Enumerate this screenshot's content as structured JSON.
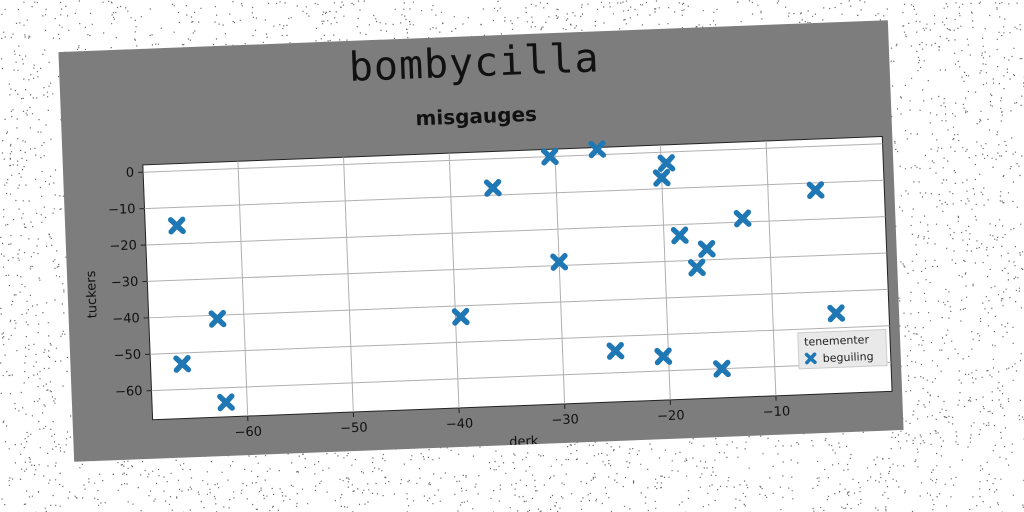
{
  "figure": {
    "suptitle": "bombycilla"
  },
  "chart_data": {
    "type": "scatter",
    "title": "misgauges",
    "xlabel": "derk",
    "ylabel": "tuckers",
    "xlim": [
      -69,
      1
    ],
    "ylim": [
      -68,
      2
    ],
    "xticks": [
      -60,
      -50,
      -40,
      -30,
      -20,
      -10
    ],
    "yticks": [
      0,
      -10,
      -20,
      -30,
      -40,
      -50,
      -60
    ],
    "xtick_labels": [
      "−60",
      "−50",
      "−40",
      "−30",
      "−20",
      "−10"
    ],
    "ytick_labels": [
      "0",
      "−10",
      "−20",
      "−30",
      "−40",
      "−50",
      "−60"
    ],
    "grid": true,
    "legend": {
      "title": "tenementer",
      "placement": "lower-right",
      "entries": [
        "beguiling"
      ]
    },
    "series": [
      {
        "name": "beguiling",
        "marker": "X",
        "color": "#1f77b4",
        "x": [
          -66,
          -62.5,
          -66,
          -62,
          -39.5,
          -36,
          -30.5,
          -30,
          -26,
          -25,
          -20.5,
          -20,
          -19.5,
          -18.5,
          -17,
          -16,
          -15,
          -12.5,
          -5.5,
          -4
        ],
        "y": [
          -15,
          -41,
          -53,
          -64,
          -43,
          -8,
          0,
          -29,
          1.5,
          -54,
          -56,
          -7,
          -3,
          -23,
          -32,
          -27,
          -60,
          -19,
          -12,
          -46
        ]
      }
    ]
  }
}
